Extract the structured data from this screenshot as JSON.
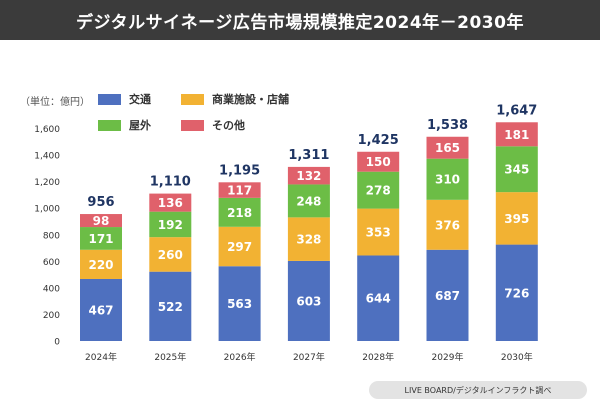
{
  "title": "デジタルサイネージ広告市場規模推定2024年－2030年",
  "unit_label": "（単位：億円）",
  "source": "LIVE BOARD/デジタルインフラクト調べ",
  "chart_data": {
    "type": "bar",
    "stacked": true,
    "categories": [
      "2024年",
      "2025年",
      "2026年",
      "2027年",
      "2028年",
      "2029年",
      "2030年"
    ],
    "series": [
      {
        "name": "交通",
        "color": "#4e70bf",
        "values": [
          467,
          522,
          563,
          603,
          644,
          687,
          726
        ]
      },
      {
        "name": "商業施設・店舗",
        "color": "#f2b233",
        "values": [
          220,
          260,
          297,
          328,
          353,
          376,
          395
        ]
      },
      {
        "name": "屋外",
        "color": "#6cbd46",
        "values": [
          171,
          192,
          218,
          248,
          278,
          310,
          345
        ]
      },
      {
        "name": "その他",
        "color": "#e0616b",
        "values": [
          98,
          136,
          117,
          132,
          150,
          165,
          181
        ]
      }
    ],
    "totals": [
      "956",
      "1,110",
      "1,195",
      "1,311",
      "1,425",
      "1,538",
      "1,647"
    ],
    "y_ticks": [
      "0",
      "200",
      "400",
      "600",
      "800",
      "1,000",
      "1,200",
      "1,400",
      "1,600"
    ],
    "ylim": [
      0,
      1600
    ],
    "grid": false,
    "legend_position": "top-left"
  }
}
